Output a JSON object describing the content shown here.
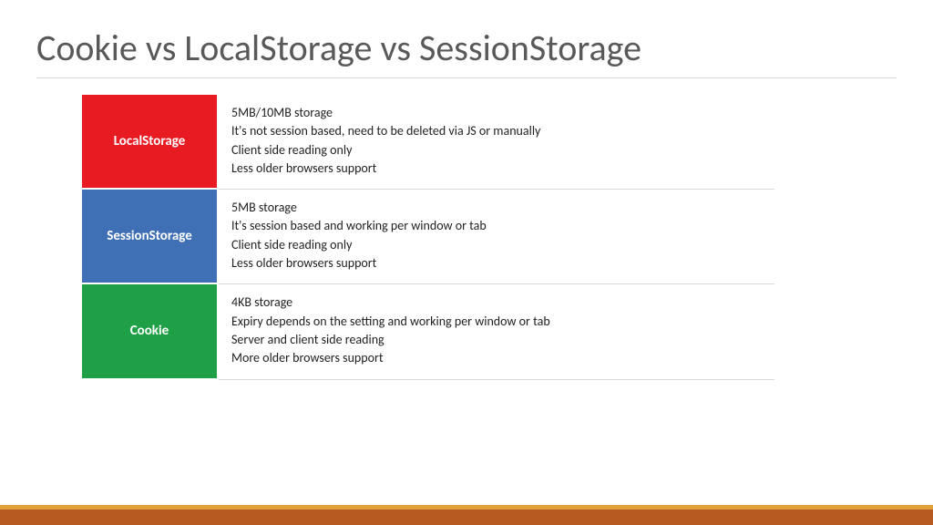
{
  "title": "Cookie vs LocalStorage vs SessionStorage",
  "rows": [
    {
      "label": "LocalStorage",
      "bg": "#e81b23",
      "lines": [
        "5MB/10MB storage",
        "It's not session based, need to be deleted via JS or manually",
        "Client side reading only",
        "Less older browsers support"
      ]
    },
    {
      "label": "SessionStorage",
      "bg": "#3f6fb5",
      "lines": [
        "5MB storage",
        "It's session based and working per window or tab",
        "Client side reading only",
        "Less older browsers support"
      ]
    },
    {
      "label": "Cookie",
      "bg": "#1fa047",
      "lines": [
        "4KB storage",
        "Expiry depends on the setting  and working per window or tab",
        "Server and client side reading",
        "More older browsers support"
      ]
    }
  ],
  "footer": {
    "top_color": "#e2a23b",
    "bottom_color": "#b65a22"
  },
  "colors": {
    "title": "#595959",
    "underline": "#d9d9d9",
    "cell_border": "#d9d9d9",
    "text": "#222222",
    "label_text": "#ffffff",
    "background": "#ffffff"
  },
  "fontsizes": {
    "title": 40,
    "label": 15,
    "body": 14
  }
}
